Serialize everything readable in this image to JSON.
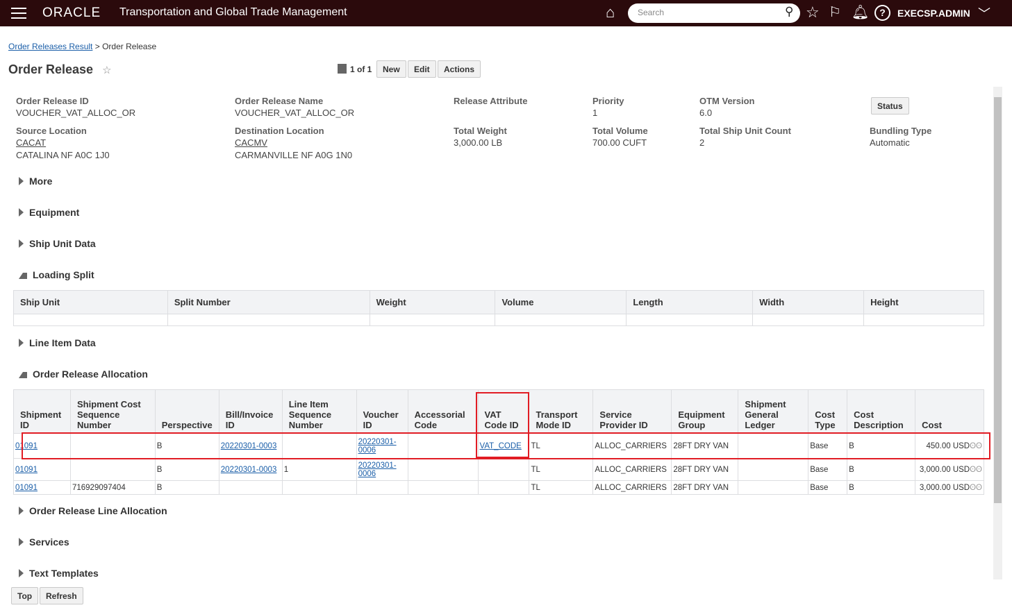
{
  "header": {
    "logo": "ORACLE",
    "app_title": "Transportation and Global Trade Management",
    "search_placeholder": "Search",
    "user": "EXECSP.ADMIN"
  },
  "breadcrumb": {
    "parent": "Order Releases Result",
    "separator": ">",
    "current": "Order Release"
  },
  "page": {
    "title": "Order Release",
    "pager": "1 of 1",
    "new": "New",
    "edit": "Edit",
    "actions": "Actions",
    "status": "Status"
  },
  "fields": [
    {
      "label": "Order Release ID",
      "value": "VOUCHER_VAT_ALLOC_OR"
    },
    {
      "label": "Order Release Name",
      "value": "VOUCHER_VAT_ALLOC_OR"
    },
    {
      "label": "Release Attribute",
      "value": ""
    },
    {
      "label": "Priority",
      "value": "1"
    },
    {
      "label": "OTM Version",
      "value": "6.0"
    },
    {
      "label": "Source Location",
      "value": "CACAT",
      "value2": "CATALINA NF A0C 1J0"
    },
    {
      "label": "Destination Location",
      "value": "CACMV",
      "value2": "CARMANVILLE NF A0G 1N0"
    },
    {
      "label": "Total Weight",
      "value": "3,000.00 LB"
    },
    {
      "label": "Total Volume",
      "value": "700.00 CUFT"
    },
    {
      "label": "Total Ship Unit Count",
      "value": "2"
    },
    {
      "label": "Bundling Type",
      "value": "Automatic"
    }
  ],
  "sections": {
    "more": "More",
    "equipment": "Equipment",
    "ship_unit": "Ship Unit Data",
    "loading_split": "Loading Split",
    "line_item": "Line Item Data",
    "allocation": "Order Release Allocation",
    "line_allocation": "Order Release Line Allocation",
    "services": "Services",
    "text_templates": "Text Templates"
  },
  "loading_split": {
    "columns": [
      "Ship Unit",
      "Split Number",
      "Weight",
      "Volume",
      "Length",
      "Width",
      "Height"
    ]
  },
  "allocation": {
    "columns": [
      "Shipment ID",
      "Shipment Cost Sequence Number",
      "Perspective",
      "Bill/Invoice ID",
      "Line Item Sequence Number",
      "Voucher ID",
      "Accessorial Code",
      "VAT Code ID",
      "Transport Mode ID",
      "Service Provider ID",
      "Equipment Group",
      "Shipment General Ledger",
      "Cost Type",
      "Cost Description",
      "Cost"
    ],
    "rows": [
      [
        "01091",
        "",
        "B",
        "20220301-0003",
        "",
        "20220301-0006",
        "",
        "VAT_CODE",
        "TL",
        "ALLOC_CARRIERS",
        "28FT DRY VAN",
        "",
        "Base",
        "B",
        "450.00 USD"
      ],
      [
        "01091",
        "",
        "B",
        "20220301-0003",
        "1",
        "20220301-0006",
        "",
        "",
        "TL",
        "ALLOC_CARRIERS",
        "28FT DRY VAN",
        "",
        "Base",
        "B",
        "3,000.00 USD"
      ],
      [
        "01091",
        "716929097404",
        "B",
        "",
        "",
        "",
        "",
        "",
        "TL",
        "ALLOC_CARRIERS",
        "28FT DRY VAN",
        "",
        "Base",
        "B",
        "3,000.00 USD"
      ]
    ]
  },
  "footer": {
    "top": "Top",
    "refresh": "Refresh"
  },
  "colors": {
    "header_bg": "#2b0a0c",
    "link": "#1a5ea8",
    "highlight": "#e11c24"
  }
}
